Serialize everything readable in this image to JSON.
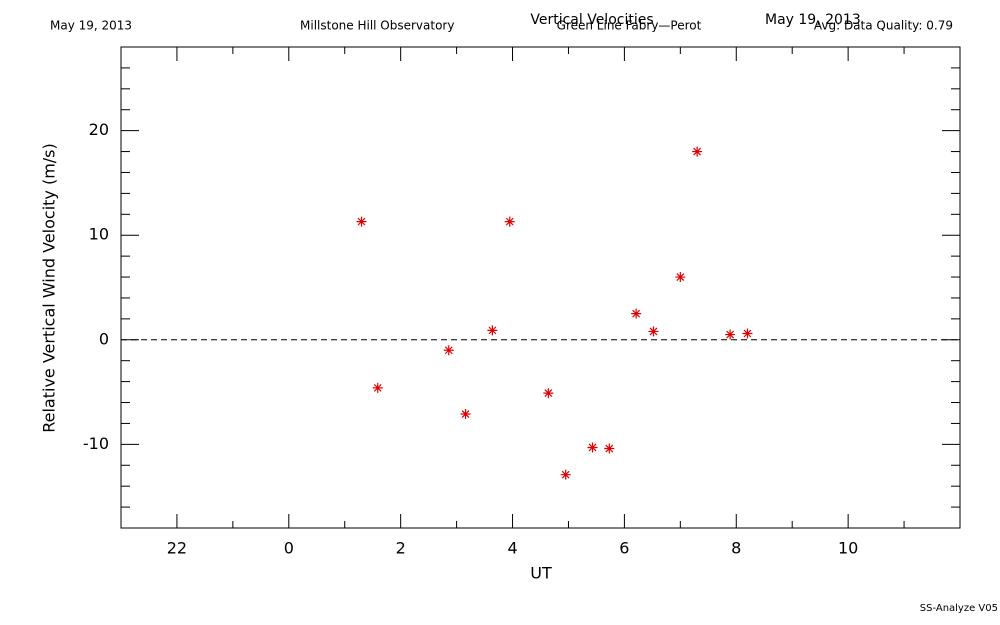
{
  "chart_data": {
    "type": "scatter",
    "title": "Vertical Velocities",
    "subtitle": "Green Line Fabry—Perot",
    "date_left": "May 19, 2013",
    "date_right": "May 19, 2013",
    "observatory": "Millstone Hill Observatory",
    "quality": "Avg: Data Quality: 0.79",
    "footer": "SS-Analyze V05",
    "xlabel": "UT",
    "ylabel": "Relative Vertical Wind Velocity (m/s)",
    "xlim": [
      -3,
      12
    ],
    "ylim": [
      -18,
      28
    ],
    "xticks": [
      {
        "value": -2,
        "label": "22"
      },
      0,
      2,
      4,
      6,
      8,
      10
    ],
    "yticks": [
      -10,
      0,
      10,
      20
    ],
    "xminorticks": [
      -3,
      -1,
      1,
      3,
      5,
      7,
      9,
      11
    ],
    "yminorticks": [
      -16,
      -14,
      -12,
      -8,
      -6,
      -4,
      -2,
      2,
      4,
      6,
      8,
      12,
      14,
      16,
      18,
      22,
      24,
      26
    ],
    "hline": 0,
    "color": "#e00000",
    "x": [
      1.3,
      1.59,
      2.86,
      3.16,
      3.64,
      3.95,
      4.64,
      4.95,
      5.43,
      5.73,
      6.21,
      6.52,
      7.0,
      7.3,
      7.89,
      8.2
    ],
    "values": [
      11.3,
      -4.6,
      -1.0,
      -7.1,
      0.9,
      11.3,
      -5.1,
      -12.9,
      -10.3,
      -10.4,
      2.5,
      0.8,
      6.0,
      18.0,
      0.5,
      0.6
    ]
  }
}
